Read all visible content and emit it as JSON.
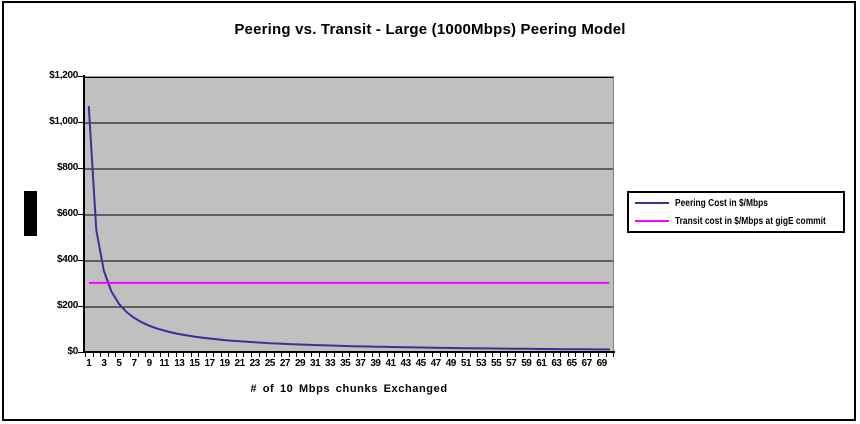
{
  "chart_data": {
    "type": "line",
    "title": "Peering vs. Transit - Large (1000Mbps) Peering Model",
    "xlabel": "# of 10 Mbps chunks Exchanged",
    "ylabel": "",
    "x_range": [
      1,
      70
    ],
    "ylim": [
      0,
      1200
    ],
    "grid": true,
    "grid_color": "#000000",
    "plot_bg": "#c0c0c0",
    "legend_position": "right",
    "y_ticks": {
      "values": [
        0,
        200,
        400,
        600,
        800,
        1000,
        1200
      ],
      "labels": [
        "$0",
        "$200",
        "$400",
        "$600",
        "$800",
        "$1,000",
        "$1,200"
      ]
    },
    "x_tick_labels": [
      "1",
      "3",
      "5",
      "7",
      "9",
      "11",
      "13",
      "15",
      "17",
      "19",
      "21",
      "23",
      "25",
      "27",
      "29",
      "31",
      "33",
      "35",
      "37",
      "39",
      "41",
      "43",
      "45",
      "47",
      "49",
      "51",
      "53",
      "55",
      "57",
      "59",
      "61",
      "63",
      "65",
      "67",
      "69"
    ],
    "series": [
      {
        "name": "Peering Cost in $/Mbps",
        "color": "#333399",
        "values": [
          1070.0,
          535.0,
          356.7,
          267.5,
          214.0,
          178.3,
          152.9,
          133.8,
          118.9,
          107.0,
          97.3,
          89.2,
          82.3,
          76.4,
          71.3,
          66.9,
          62.9,
          59.4,
          56.3,
          53.5,
          51.0,
          48.6,
          46.5,
          44.6,
          42.8,
          41.2,
          39.6,
          38.2,
          36.9,
          35.7,
          34.5,
          33.4,
          32.4,
          31.5,
          30.6,
          29.7,
          28.9,
          28.2,
          27.4,
          26.8,
          26.1,
          25.5,
          24.9,
          24.3,
          23.8,
          23.3,
          22.8,
          22.3,
          21.8,
          21.4,
          21.0,
          20.6,
          20.2,
          19.8,
          19.5,
          19.1,
          18.8,
          18.4,
          18.1,
          17.8,
          17.5,
          17.3,
          17.0,
          16.7,
          16.5,
          16.2,
          16.0,
          15.7,
          15.5,
          15.3
        ]
      },
      {
        "name": "Transit cost in $/Mbps at gigE commit",
        "color": "#ff00ff",
        "constant_value": 305
      }
    ]
  }
}
